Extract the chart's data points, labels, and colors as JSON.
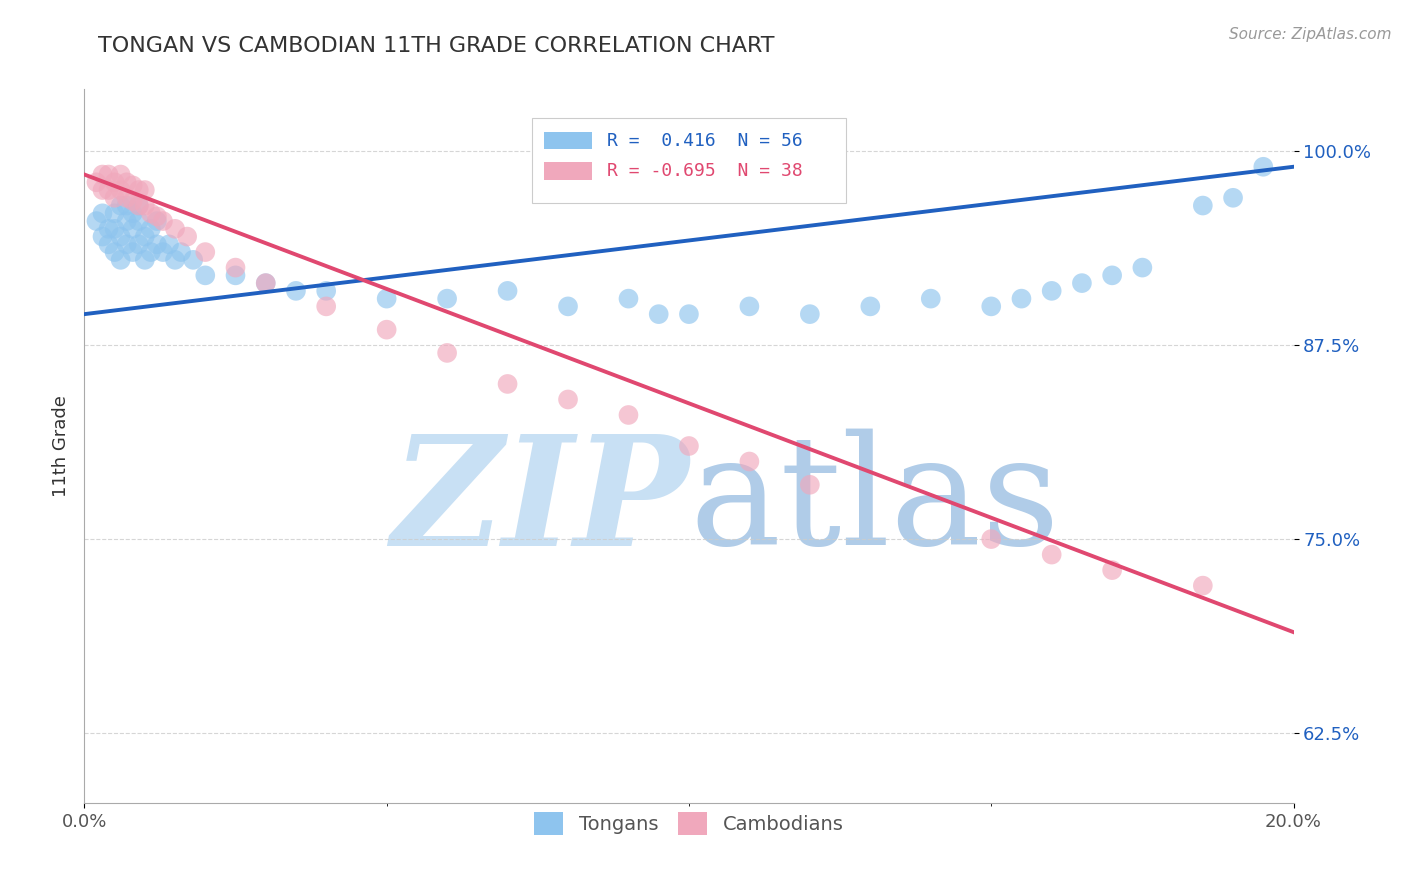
{
  "title": "TONGAN VS CAMBODIAN 11TH GRADE CORRELATION CHART",
  "source": "Source: ZipAtlas.com",
  "ylabel": "11th Grade",
  "y_ticks": [
    0.625,
    0.75,
    0.875,
    1.0
  ],
  "y_tick_labels": [
    "62.5%",
    "75.0%",
    "87.5%",
    "100.0%"
  ],
  "x_range": [
    0.0,
    0.2
  ],
  "y_range": [
    0.58,
    1.04
  ],
  "tongan_R": 0.416,
  "tongan_N": 56,
  "cambodian_R": -0.695,
  "cambodian_N": 38,
  "tongan_color": "#8EC4EE",
  "cambodian_color": "#F0A8BC",
  "tongan_line_color": "#2060C0",
  "cambodian_line_color": "#E04870",
  "watermark_zip_color": "#C8E0F4",
  "watermark_atlas_color": "#B0CCE8",
  "background_color": "#FFFFFF",
  "tongan_x": [
    0.002,
    0.003,
    0.003,
    0.004,
    0.004,
    0.005,
    0.005,
    0.005,
    0.006,
    0.006,
    0.006,
    0.007,
    0.007,
    0.007,
    0.008,
    0.008,
    0.008,
    0.009,
    0.009,
    0.009,
    0.01,
    0.01,
    0.011,
    0.011,
    0.012,
    0.012,
    0.013,
    0.014,
    0.015,
    0.016,
    0.018,
    0.02,
    0.025,
    0.03,
    0.035,
    0.04,
    0.05,
    0.06,
    0.07,
    0.08,
    0.09,
    0.095,
    0.1,
    0.11,
    0.12,
    0.13,
    0.14,
    0.15,
    0.155,
    0.16,
    0.165,
    0.17,
    0.175,
    0.185,
    0.19,
    0.195
  ],
  "tongan_y": [
    0.955,
    0.945,
    0.96,
    0.94,
    0.95,
    0.935,
    0.95,
    0.96,
    0.945,
    0.93,
    0.965,
    0.94,
    0.955,
    0.965,
    0.935,
    0.95,
    0.96,
    0.94,
    0.955,
    0.965,
    0.93,
    0.945,
    0.935,
    0.95,
    0.94,
    0.955,
    0.935,
    0.94,
    0.93,
    0.935,
    0.93,
    0.92,
    0.92,
    0.915,
    0.91,
    0.91,
    0.905,
    0.905,
    0.91,
    0.9,
    0.905,
    0.895,
    0.895,
    0.9,
    0.895,
    0.9,
    0.905,
    0.9,
    0.905,
    0.91,
    0.915,
    0.92,
    0.925,
    0.965,
    0.97,
    0.99
  ],
  "cambodian_x": [
    0.002,
    0.003,
    0.003,
    0.004,
    0.004,
    0.005,
    0.005,
    0.006,
    0.006,
    0.007,
    0.007,
    0.008,
    0.008,
    0.009,
    0.009,
    0.01,
    0.01,
    0.011,
    0.012,
    0.013,
    0.015,
    0.017,
    0.02,
    0.025,
    0.03,
    0.04,
    0.05,
    0.06,
    0.07,
    0.08,
    0.09,
    0.1,
    0.11,
    0.12,
    0.15,
    0.16,
    0.17,
    0.185
  ],
  "cambodian_y": [
    0.98,
    0.975,
    0.985,
    0.975,
    0.985,
    0.97,
    0.98,
    0.975,
    0.985,
    0.97,
    0.98,
    0.968,
    0.978,
    0.965,
    0.975,
    0.965,
    0.975,
    0.96,
    0.958,
    0.955,
    0.95,
    0.945,
    0.935,
    0.925,
    0.915,
    0.9,
    0.885,
    0.87,
    0.85,
    0.84,
    0.83,
    0.81,
    0.8,
    0.785,
    0.75,
    0.74,
    0.73,
    0.72
  ],
  "tongan_trend_x": [
    0.0,
    0.2
  ],
  "tongan_trend_y": [
    0.895,
    0.99
  ],
  "cambodian_trend_x": [
    0.0,
    0.2
  ],
  "cambodian_trend_y": [
    0.985,
    0.69
  ]
}
